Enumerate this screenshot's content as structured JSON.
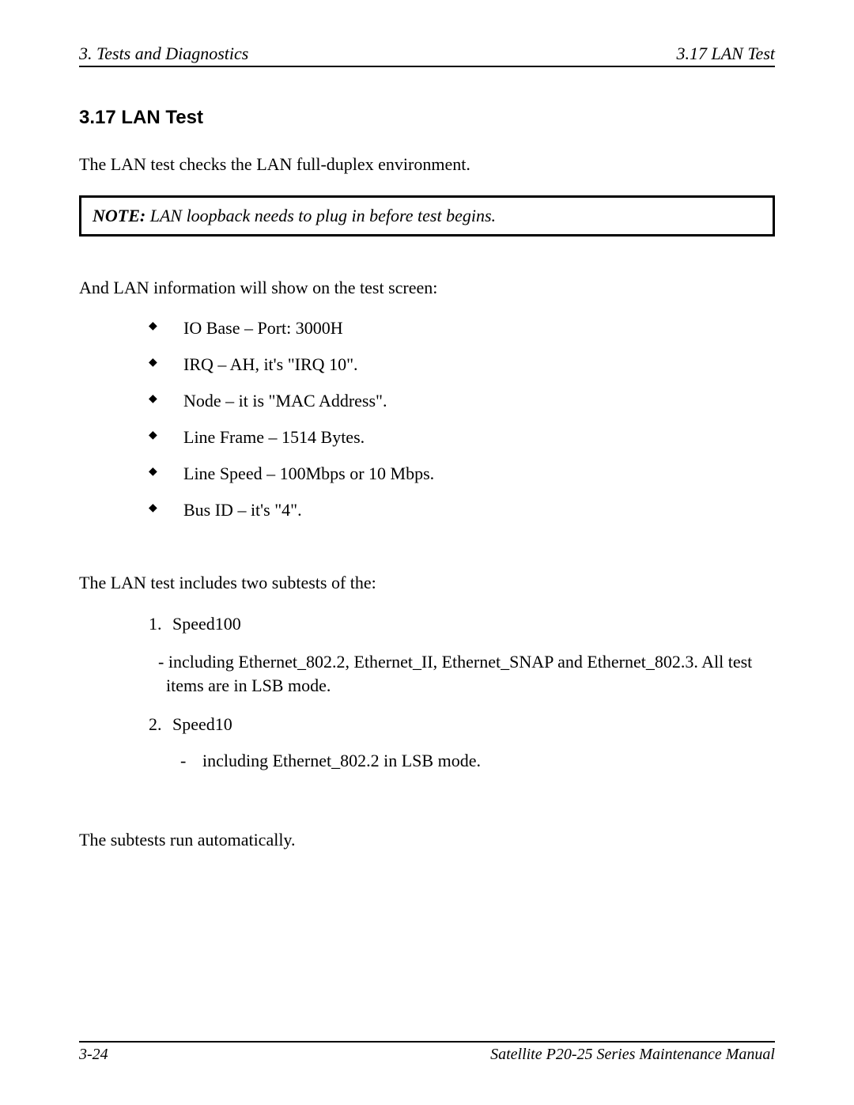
{
  "header": {
    "left": "3.   Tests and Diagnostics",
    "right": "3.17  LAN Test"
  },
  "section_title": "3.17  LAN Test",
  "intro": "The LAN test checks the LAN full-duplex environment.",
  "note": {
    "label": "NOTE:",
    "text": "  LAN loopback needs to plug in before test begins."
  },
  "info_intro": "And LAN information will show on the test screen:",
  "bullets": [
    "IO Base – Port: 3000H",
    "IRQ – AH, it's \"IRQ 10\".",
    "Node – it is \"MAC Address\".",
    "Line Frame – 1514 Bytes.",
    "Line Speed – 100Mbps or 10 Mbps.",
    "Bus ID – it's \"4\"."
  ],
  "subtests_intro": "The LAN test includes two subtests of the:",
  "subtests": {
    "item1_num": "1.",
    "item1_label": "Speed100",
    "item1_desc": "- including Ethernet_802.2, Ethernet_II, Ethernet_SNAP and Ethernet_802.3. All test items are in LSB mode.",
    "item2_num": "2.",
    "item2_label": "Speed10",
    "item2_dash": "-",
    "item2_desc": "including Ethernet_802.2 in LSB mode."
  },
  "auto_run": "The subtests run automatically.",
  "footer": {
    "left": "3-24",
    "right": "Satellite P20-25 Series Maintenance Manual"
  }
}
